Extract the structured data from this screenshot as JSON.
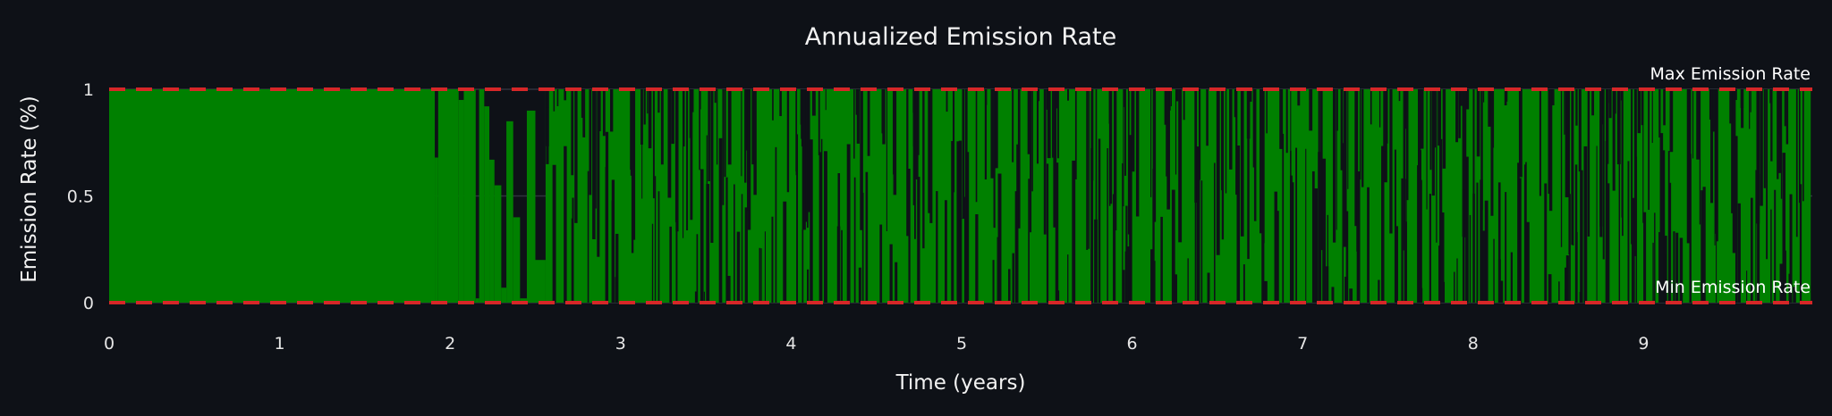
{
  "chart_data": {
    "type": "bar",
    "title": "Annualized Emission Rate",
    "xlabel": "Time (years)",
    "ylabel": "Emission Rate (%)",
    "xlim": [
      0,
      9.98
    ],
    "ylim": [
      0,
      1
    ],
    "x_ticks": [
      "0",
      "1",
      "2",
      "3",
      "4",
      "5",
      "6",
      "7",
      "8",
      "9"
    ],
    "y_ticks": [
      "0",
      "0.5",
      "1"
    ],
    "grid": true,
    "bar_color": "#008000",
    "series": [
      {
        "segments": [
          {
            "x_start": 0.0,
            "x_end": 1.91,
            "value": 1.0
          },
          {
            "x_start": 1.91,
            "x_end": 1.93,
            "value": 0.68
          },
          {
            "x_start": 1.93,
            "x_end": 2.05,
            "value": 1.0
          },
          {
            "x_start": 2.05,
            "x_end": 2.08,
            "value": 0.95
          },
          {
            "x_start": 2.08,
            "x_end": 2.15,
            "value": 1.0
          },
          {
            "x_start": 2.15,
            "x_end": 2.17,
            "value": 0.02
          },
          {
            "x_start": 2.17,
            "x_end": 2.2,
            "value": 1.0
          },
          {
            "x_start": 2.2,
            "x_end": 2.23,
            "value": 0.92
          },
          {
            "x_start": 2.23,
            "x_end": 2.26,
            "value": 0.67
          },
          {
            "x_start": 2.26,
            "x_end": 2.3,
            "value": 0.55
          },
          {
            "x_start": 2.3,
            "x_end": 2.33,
            "value": 0.07
          },
          {
            "x_start": 2.33,
            "x_end": 2.37,
            "value": 0.85
          },
          {
            "x_start": 2.37,
            "x_end": 2.41,
            "value": 0.4
          },
          {
            "x_start": 2.41,
            "x_end": 2.45,
            "value": 0.02
          },
          {
            "x_start": 2.45,
            "x_end": 2.5,
            "value": 0.9
          },
          {
            "x_start": 2.5,
            "x_end": 2.56,
            "value": 0.2
          },
          {
            "x_start": 2.56,
            "x_end": 9.98,
            "value": 1.0
          }
        ]
      }
    ],
    "reference_lines": [
      {
        "name": "Max Emission Rate",
        "y": 1,
        "color": "#d62728",
        "style": "dashed"
      },
      {
        "name": "Min Emission Rate",
        "y": 0,
        "color": "#d62728",
        "style": "dashed"
      }
    ]
  }
}
